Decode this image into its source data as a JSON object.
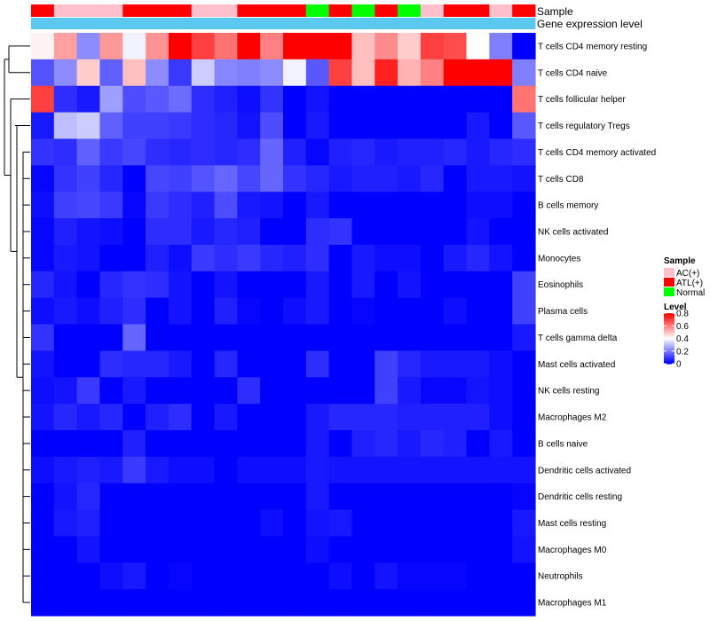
{
  "chart_data": {
    "type": "heatmap",
    "title": "",
    "annotations": {
      "sample_label": "Sample",
      "gene_label": "Gene expression level",
      "sample_groups": [
        "ATL(+)",
        "AC(+)",
        "AC(+)",
        "AC(+)",
        "ATL(+)",
        "ATL(+)",
        "ATL(+)",
        "AC(+)",
        "AC(+)",
        "ATL(+)",
        "ATL(+)",
        "ATL(+)",
        "Normal",
        "ATL(+)",
        "Normal",
        "ATL(+)",
        "Normal",
        "AC(+)",
        "ATL(+)",
        "ATL(+)",
        "AC(+)",
        "ATL(+)"
      ],
      "gene_color": "#5bc8ef"
    },
    "rows": [
      "T cells CD4 memory resting",
      "T cells CD4 naive",
      "T cells follicular helper",
      "T cells regulatory  Tregs",
      "T cells CD4 memory activated",
      "T cells CD8",
      "B cells memory",
      "NK cells activated",
      "Monocytes",
      "Eosinophils",
      "Plasma cells",
      "T cells gamma delta",
      "Mast cells activated",
      "NK cells resting",
      "Macrophages M2",
      "B cells naive",
      "Dendritic cells activated",
      "Dendritic cells resting",
      "Mast cells resting",
      "Macrophages M0",
      "Neutrophils",
      "Macrophages M1"
    ],
    "values": [
      [
        0.42,
        0.55,
        0.22,
        0.56,
        0.38,
        0.57,
        0.82,
        0.7,
        0.62,
        0.8,
        0.6,
        0.8,
        0.8,
        0.8,
        0.5,
        0.58,
        0.48,
        0.7,
        0.68,
        0.4,
        0.2,
        0.0
      ],
      [
        0.13,
        0.22,
        0.48,
        0.15,
        0.5,
        0.22,
        0.09,
        0.32,
        0.21,
        0.2,
        0.22,
        0.38,
        0.14,
        0.7,
        0.5,
        0.75,
        0.52,
        0.6,
        0.82,
        0.82,
        0.82,
        0.2
      ],
      [
        0.7,
        0.07,
        0.04,
        0.25,
        0.12,
        0.14,
        0.17,
        0.07,
        0.05,
        0.02,
        0.08,
        0.0,
        0.03,
        0.0,
        0.0,
        0.0,
        0.0,
        0.0,
        0.0,
        0.0,
        0.0,
        0.62
      ],
      [
        0.04,
        0.3,
        0.32,
        0.15,
        0.1,
        0.1,
        0.09,
        0.07,
        0.06,
        0.03,
        0.12,
        0.0,
        0.04,
        0.0,
        0.0,
        0.0,
        0.0,
        0.0,
        0.0,
        0.04,
        0.0,
        0.14
      ],
      [
        0.08,
        0.07,
        0.15,
        0.09,
        0.11,
        0.07,
        0.06,
        0.07,
        0.06,
        0.07,
        0.16,
        0.05,
        0.01,
        0.05,
        0.06,
        0.04,
        0.05,
        0.05,
        0.06,
        0.04,
        0.06,
        0.07
      ],
      [
        0.01,
        0.08,
        0.1,
        0.06,
        0.0,
        0.11,
        0.1,
        0.13,
        0.16,
        0.11,
        0.16,
        0.08,
        0.06,
        0.04,
        0.05,
        0.05,
        0.04,
        0.06,
        0.0,
        0.04,
        0.04,
        0.03
      ],
      [
        0.02,
        0.1,
        0.11,
        0.09,
        0.01,
        0.09,
        0.07,
        0.05,
        0.12,
        0.04,
        0.03,
        0.0,
        0.04,
        0.0,
        0.0,
        0.0,
        0.0,
        0.0,
        0.0,
        0.02,
        0.02,
        0.0
      ],
      [
        0.01,
        0.05,
        0.03,
        0.02,
        0.0,
        0.07,
        0.07,
        0.04,
        0.06,
        0.05,
        0.0,
        0.0,
        0.07,
        0.08,
        0.0,
        0.0,
        0.0,
        0.0,
        0.0,
        0.03,
        0.0,
        0.0
      ],
      [
        0.01,
        0.04,
        0.03,
        0.0,
        0.0,
        0.05,
        0.02,
        0.09,
        0.07,
        0.09,
        0.06,
        0.05,
        0.07,
        0.0,
        0.04,
        0.02,
        0.02,
        0.0,
        0.04,
        0.06,
        0.03,
        0.0
      ],
      [
        0.06,
        0.03,
        0.0,
        0.06,
        0.08,
        0.07,
        0.03,
        0.0,
        0.03,
        0.0,
        0.0,
        0.0,
        0.04,
        0.0,
        0.04,
        0.0,
        0.03,
        0.0,
        0.0,
        0.0,
        0.0,
        0.1
      ],
      [
        0.02,
        0.04,
        0.02,
        0.05,
        0.07,
        0.0,
        0.03,
        0.0,
        0.05,
        0.01,
        0.0,
        0.02,
        0.04,
        0.0,
        0.01,
        0.0,
        0.0,
        0.0,
        0.02,
        0.0,
        0.0,
        0.1
      ],
      [
        0.08,
        0.0,
        0.0,
        0.0,
        0.16,
        0.0,
        0.0,
        0.0,
        0.0,
        0.0,
        0.0,
        0.0,
        0.0,
        0.0,
        0.0,
        0.0,
        0.0,
        0.0,
        0.0,
        0.0,
        0.0,
        0.04
      ],
      [
        0.03,
        0.0,
        0.0,
        0.07,
        0.06,
        0.06,
        0.04,
        0.0,
        0.06,
        0.0,
        0.0,
        0.0,
        0.07,
        0.0,
        0.0,
        0.1,
        0.06,
        0.04,
        0.04,
        0.04,
        0.02,
        0.0
      ],
      [
        0.02,
        0.03,
        0.09,
        0.0,
        0.04,
        0.0,
        0.0,
        0.0,
        0.0,
        0.07,
        0.0,
        0.0,
        0.0,
        0.0,
        0.0,
        0.1,
        0.04,
        0.01,
        0.01,
        0.03,
        0.02,
        0.0
      ],
      [
        0.03,
        0.06,
        0.04,
        0.06,
        0.0,
        0.05,
        0.07,
        0.0,
        0.04,
        0.0,
        0.0,
        0.0,
        0.04,
        0.06,
        0.06,
        0.06,
        0.05,
        0.05,
        0.05,
        0.05,
        0.02,
        0.0
      ],
      [
        0.0,
        0.0,
        0.0,
        0.0,
        0.05,
        0.0,
        0.0,
        0.0,
        0.0,
        0.0,
        0.0,
        0.0,
        0.04,
        0.0,
        0.05,
        0.06,
        0.04,
        0.06,
        0.05,
        0.0,
        0.04,
        0.0
      ],
      [
        0.02,
        0.04,
        0.05,
        0.04,
        0.09,
        0.04,
        0.02,
        0.02,
        0.0,
        0.02,
        0.02,
        0.02,
        0.04,
        0.03,
        0.03,
        0.03,
        0.03,
        0.03,
        0.03,
        0.03,
        0.03,
        0.03
      ],
      [
        0.0,
        0.03,
        0.06,
        0.0,
        0.0,
        0.0,
        0.0,
        0.0,
        0.0,
        0.0,
        0.0,
        0.0,
        0.04,
        0.0,
        0.0,
        0.0,
        0.0,
        0.0,
        0.0,
        0.0,
        0.0,
        0.01
      ],
      [
        0.0,
        0.04,
        0.05,
        0.0,
        0.0,
        0.0,
        0.0,
        0.0,
        0.0,
        0.0,
        0.02,
        0.0,
        0.03,
        0.04,
        0.0,
        0.0,
        0.0,
        0.0,
        0.0,
        0.0,
        0.0,
        0.04
      ],
      [
        0.0,
        0.0,
        0.03,
        0.0,
        0.0,
        0.0,
        0.0,
        0.0,
        0.0,
        0.0,
        0.0,
        0.0,
        0.02,
        0.0,
        0.0,
        0.0,
        0.0,
        0.0,
        0.0,
        0.0,
        0.0,
        0.03
      ],
      [
        0.0,
        0.0,
        0.0,
        0.02,
        0.04,
        0.0,
        0.01,
        0.0,
        0.0,
        0.0,
        0.0,
        0.0,
        0.0,
        0.02,
        0.0,
        0.03,
        0.01,
        0.01,
        0.01,
        0.0,
        0.0,
        0.0
      ],
      [
        0.0,
        0.0,
        0.0,
        0.0,
        0.0,
        0.0,
        0.0,
        0.0,
        0.0,
        0.0,
        0.0,
        0.0,
        0.0,
        0.0,
        0.0,
        0.0,
        0.0,
        0.0,
        0.0,
        0.0,
        0.0,
        0.0
      ]
    ],
    "color_scale": {
      "low": "#0000ff",
      "mid": "#ffffff",
      "high": "#ff0000",
      "domain": [
        0,
        0.4,
        0.8
      ]
    },
    "legend_sample": {
      "title": "Sample",
      "items": [
        {
          "label": "AC(+)",
          "color": "#ffc0cb"
        },
        {
          "label": "ATL(+)",
          "color": "#ff0000"
        },
        {
          "label": "Normal",
          "color": "#00ff00"
        }
      ]
    },
    "legend_level": {
      "title": "Level",
      "ticks": [
        {
          "label": "0.8",
          "value": 0.8
        },
        {
          "label": "0.6",
          "value": 0.6
        },
        {
          "label": "0.4",
          "value": 0.4
        },
        {
          "label": "0.2",
          "value": 0.2
        },
        {
          "label": "0",
          "value": 0.0
        }
      ]
    }
  }
}
